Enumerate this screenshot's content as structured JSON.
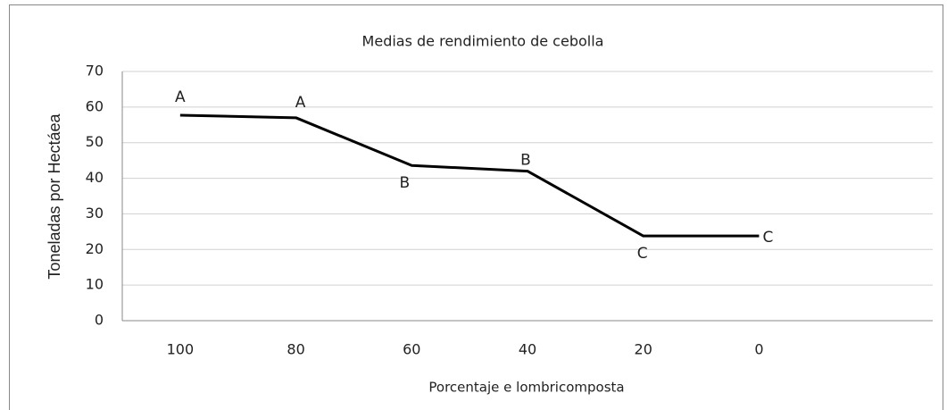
{
  "chart_data": {
    "type": "line",
    "title": "Medias de rendimiento de cebolla",
    "x_label": "Porcentaje e lombricomposta",
    "y_label": "Toneladas por Hectáea",
    "categories": [
      "100",
      "80",
      "60",
      "40",
      "20",
      "0",
      null
    ],
    "values": [
      57.7,
      57,
      43.6,
      42,
      23.8,
      23.8,
      null
    ],
    "annotations": [
      "A",
      "A",
      "B",
      "B",
      "C",
      "C"
    ],
    "color": "#000000",
    "ylim": [
      0,
      70
    ],
    "yticks": [
      0,
      10,
      20,
      30,
      40,
      50,
      60,
      70
    ],
    "grid": true
  }
}
